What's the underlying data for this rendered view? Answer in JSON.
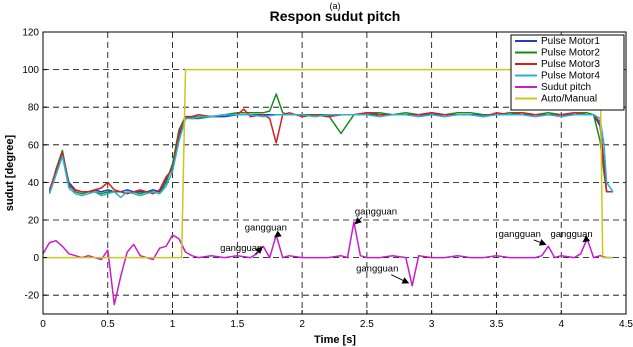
{
  "chart_data": {
    "type": "line",
    "caption": "(a)",
    "title": "Respon sudut pitch",
    "xlabel": "Time [s]",
    "ylabel": "sudut [degree]",
    "xlim": [
      0,
      4.5
    ],
    "ylim": [
      -30,
      120
    ],
    "xticks": [
      0,
      0.5,
      1,
      1.5,
      2,
      2.5,
      3,
      3.5,
      4,
      4.5
    ],
    "xtick_labels": [
      "0",
      "0.5",
      "1",
      "1.5",
      "2",
      "2.5",
      "3",
      "3.5",
      "4",
      "4.5"
    ],
    "yticks": [
      -20,
      0,
      20,
      40,
      60,
      80,
      100,
      120
    ],
    "ytick_labels": [
      "-20",
      "0",
      "20",
      "40",
      "60",
      "80",
      "100",
      "120"
    ],
    "grid": true,
    "legend_position": "top-right",
    "series": [
      {
        "name": "Pulse Motor1",
        "color": "#1f3fbf",
        "x": [
          0.05,
          0.1,
          0.15,
          0.2,
          0.25,
          0.3,
          0.35,
          0.4,
          0.45,
          0.5,
          0.55,
          0.6,
          0.65,
          0.7,
          0.75,
          0.8,
          0.85,
          0.9,
          0.95,
          1.0,
          1.05,
          1.1,
          1.15,
          1.2,
          1.3,
          1.4,
          1.5,
          1.6,
          1.7,
          1.8,
          1.9,
          2.0,
          2.1,
          2.2,
          2.3,
          2.4,
          2.5,
          2.6,
          2.7,
          2.8,
          2.9,
          3.0,
          3.1,
          3.2,
          3.3,
          3.4,
          3.5,
          3.6,
          3.7,
          3.8,
          3.9,
          4.0,
          4.1,
          4.2,
          4.25,
          4.3,
          4.33,
          4.35,
          4.4
        ],
        "y": [
          35,
          45,
          55,
          40,
          36,
          35,
          35,
          36,
          35,
          36,
          35,
          35,
          36,
          35,
          35,
          35,
          36,
          35,
          42,
          48,
          65,
          74,
          75,
          75,
          75,
          75,
          76,
          76,
          76,
          76,
          76,
          76,
          76,
          75,
          76,
          76,
          76,
          76,
          76,
          76,
          76,
          76,
          76,
          76,
          76,
          76,
          76,
          76,
          76,
          76,
          76,
          76,
          76,
          76,
          76,
          70,
          50,
          35,
          35
        ]
      },
      {
        "name": "Pulse Motor2",
        "color": "#1a8a1a",
        "x": [
          0.05,
          0.1,
          0.15,
          0.2,
          0.25,
          0.3,
          0.35,
          0.4,
          0.45,
          0.5,
          0.55,
          0.6,
          0.65,
          0.7,
          0.75,
          0.8,
          0.85,
          0.9,
          0.95,
          1.0,
          1.05,
          1.1,
          1.15,
          1.2,
          1.3,
          1.4,
          1.5,
          1.6,
          1.7,
          1.75,
          1.8,
          1.85,
          1.9,
          2.0,
          2.1,
          2.2,
          2.3,
          2.4,
          2.5,
          2.6,
          2.7,
          2.8,
          2.9,
          3.0,
          3.1,
          3.2,
          3.3,
          3.4,
          3.5,
          3.6,
          3.7,
          3.8,
          3.9,
          4.0,
          4.1,
          4.2,
          4.25,
          4.3,
          4.33,
          4.35,
          4.4
        ],
        "y": [
          34,
          47,
          57,
          39,
          35,
          34,
          35,
          35,
          34,
          35,
          35,
          35,
          34,
          35,
          34,
          35,
          35,
          34,
          40,
          50,
          68,
          75,
          74,
          74,
          75,
          76,
          77,
          77,
          77,
          78,
          87,
          77,
          76,
          76,
          76,
          76,
          66,
          76,
          77,
          77,
          76,
          77,
          76,
          77,
          76,
          77,
          77,
          76,
          76,
          77,
          77,
          76,
          77,
          76,
          77,
          77,
          76,
          62,
          45,
          35,
          35
        ]
      },
      {
        "name": "Pulse Motor3",
        "color": "#d42020",
        "x": [
          0.05,
          0.1,
          0.15,
          0.2,
          0.25,
          0.3,
          0.35,
          0.4,
          0.45,
          0.5,
          0.55,
          0.6,
          0.65,
          0.7,
          0.75,
          0.8,
          0.85,
          0.9,
          0.95,
          1.0,
          1.05,
          1.1,
          1.15,
          1.2,
          1.3,
          1.4,
          1.5,
          1.55,
          1.6,
          1.7,
          1.75,
          1.8,
          1.85,
          1.9,
          2.0,
          2.1,
          2.2,
          2.3,
          2.4,
          2.5,
          2.6,
          2.7,
          2.8,
          2.9,
          3.0,
          3.1,
          3.2,
          3.3,
          3.4,
          3.5,
          3.6,
          3.7,
          3.8,
          3.9,
          4.0,
          4.1,
          4.2,
          4.25,
          4.3,
          4.33,
          4.35,
          4.4
        ],
        "y": [
          36,
          46,
          56,
          38,
          36,
          35,
          35,
          36,
          37,
          40,
          36,
          35,
          34,
          35,
          36,
          35,
          34,
          36,
          43,
          47,
          66,
          75,
          75,
          76,
          75,
          76,
          76,
          79,
          75,
          76,
          74,
          61,
          76,
          77,
          75,
          76,
          75,
          76,
          76,
          77,
          76,
          76,
          76,
          76,
          77,
          76,
          76,
          76,
          75,
          77,
          76,
          77,
          76,
          76,
          76,
          77,
          76,
          76,
          72,
          48,
          35,
          35
        ]
      },
      {
        "name": "Pulse Motor4",
        "color": "#2ab0d8",
        "x": [
          0.05,
          0.1,
          0.15,
          0.2,
          0.25,
          0.3,
          0.35,
          0.4,
          0.45,
          0.5,
          0.55,
          0.6,
          0.65,
          0.7,
          0.75,
          0.8,
          0.85,
          0.9,
          0.95,
          1.0,
          1.05,
          1.1,
          1.15,
          1.2,
          1.3,
          1.4,
          1.5,
          1.6,
          1.7,
          1.8,
          1.9,
          2.0,
          2.1,
          2.2,
          2.3,
          2.4,
          2.5,
          2.6,
          2.7,
          2.8,
          2.9,
          3.0,
          3.1,
          3.2,
          3.3,
          3.4,
          3.5,
          3.6,
          3.7,
          3.8,
          3.9,
          4.0,
          4.1,
          4.2,
          4.25,
          4.3,
          4.33,
          4.35,
          4.4
        ],
        "y": [
          34,
          44,
          54,
          37,
          34,
          33,
          34,
          35,
          33,
          34,
          35,
          32,
          35,
          34,
          33,
          34,
          35,
          34,
          38,
          46,
          62,
          74,
          74,
          75,
          75,
          76,
          76,
          76,
          75,
          76,
          76,
          76,
          75,
          76,
          76,
          76,
          76,
          75,
          76,
          76,
          75,
          76,
          75,
          76,
          76,
          75,
          76,
          76,
          76,
          75,
          76,
          75,
          76,
          76,
          76,
          74,
          60,
          40,
          35
        ]
      },
      {
        "name": "Sudut pitch",
        "color": "#c81ec8",
        "x": [
          0.0,
          0.05,
          0.1,
          0.15,
          0.2,
          0.25,
          0.3,
          0.35,
          0.4,
          0.45,
          0.5,
          0.55,
          0.6,
          0.65,
          0.7,
          0.75,
          0.8,
          0.85,
          0.9,
          0.95,
          1.0,
          1.05,
          1.1,
          1.15,
          1.2,
          1.3,
          1.4,
          1.5,
          1.6,
          1.65,
          1.7,
          1.75,
          1.8,
          1.85,
          1.9,
          2.0,
          2.1,
          2.2,
          2.3,
          2.35,
          2.4,
          2.45,
          2.5,
          2.6,
          2.7,
          2.8,
          2.85,
          2.9,
          3.0,
          3.1,
          3.2,
          3.3,
          3.4,
          3.5,
          3.6,
          3.7,
          3.8,
          3.85,
          3.9,
          3.95,
          4.0,
          4.1,
          4.15,
          4.2,
          4.25,
          4.3,
          4.35,
          4.4
        ],
        "y": [
          2,
          8,
          9,
          6,
          2,
          1,
          0,
          1,
          0,
          -1,
          4,
          -25,
          -10,
          3,
          7,
          1,
          0,
          -1,
          5,
          6,
          12,
          10,
          3,
          1,
          0,
          1,
          0,
          1,
          0,
          2,
          6,
          0,
          12,
          0,
          1,
          0,
          0,
          0,
          1,
          0,
          19,
          1,
          0,
          0,
          1,
          0,
          -15,
          1,
          0,
          0,
          1,
          0,
          0,
          1,
          0,
          0,
          0,
          1,
          6,
          0,
          1,
          0,
          2,
          10,
          0,
          1,
          0,
          0
        ]
      },
      {
        "name": "Auto/Manual",
        "color": "#c8c81e",
        "x": [
          0,
          1.07,
          1.1,
          4.3,
          4.32,
          4.4
        ],
        "y": [
          0,
          0,
          100,
          100,
          0,
          0
        ]
      }
    ],
    "annotations": [
      {
        "text": "gangguan",
        "tx": 1.72,
        "ty": 14.5,
        "ax": 1.79,
        "ay": 11
      },
      {
        "text": "gangguan",
        "tx": 1.53,
        "ty": 3.5,
        "ax": 1.69,
        "ay": 5.5
      },
      {
        "text": "gangguan",
        "tx": 2.57,
        "ty": 23,
        "ax": 2.41,
        "ay": 18
      },
      {
        "text": "gangguan",
        "tx": 2.58,
        "ty": -7.5,
        "ax": 2.82,
        "ay": -13.5
      },
      {
        "text": "gangguan",
        "tx": 3.68,
        "ty": 11,
        "ax": 3.88,
        "ay": 7
      },
      {
        "text": "gangguan",
        "tx": 4.08,
        "ty": 11,
        "ax": 4.17,
        "ay": 8.5
      }
    ]
  }
}
